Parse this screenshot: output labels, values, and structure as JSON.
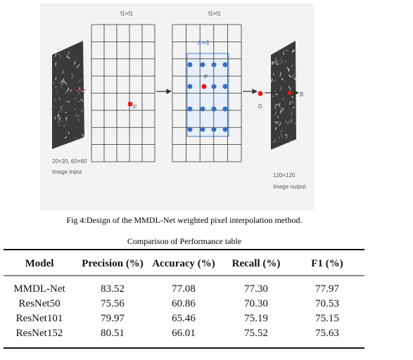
{
  "figure": {
    "labels": {
      "grid_left": "f1×f1",
      "grid_right": "f1×f1",
      "window": "4×4",
      "point_a": "A",
      "point_p1": "P",
      "point_p2": "P",
      "point_d": "D",
      "point_b": "B",
      "input_size": "20×20,  60×60",
      "input_label": "Image Input",
      "output_size": "120×120",
      "output_label": "Image output"
    },
    "caption": "Fig 4:Design of the MMDL-Net weighted  pixel interpolation method."
  },
  "table": {
    "title": "Comparison of Performance table",
    "columns": [
      "Model",
      "Precision (%)",
      "Accuracy (%)",
      "Recall (%)",
      "F1 (%)"
    ],
    "rows": [
      [
        "MMDL-Net",
        "83.52",
        "77.08",
        "77.30",
        "77.97"
      ],
      [
        "ResNet50",
        "75.56",
        "60.86",
        "70.30",
        "70.53"
      ],
      [
        "ResNet101",
        "79.97",
        "65.46",
        "75.19",
        "75.15"
      ],
      [
        "ResNet152",
        "80.51",
        "66.01",
        "75.52",
        "75.63"
      ]
    ]
  }
}
